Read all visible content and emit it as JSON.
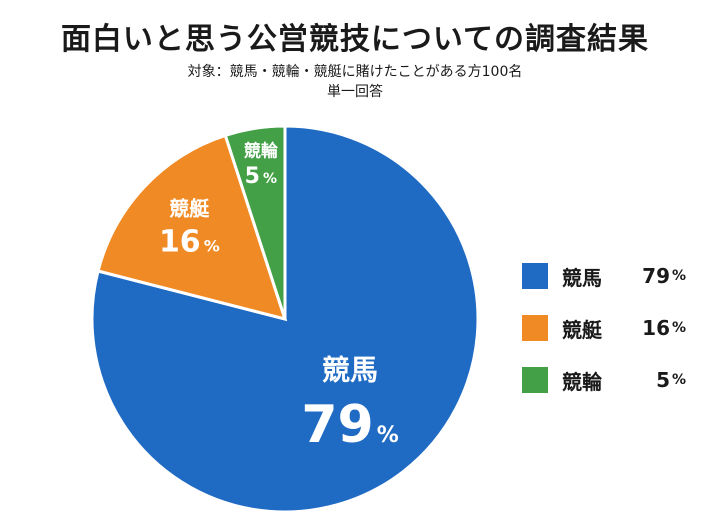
{
  "header": {
    "title": "面白いと思う公営競技についての調査結果",
    "subtitle_line1": "対象：競馬・競輪・競艇に賭けたことがある方100名",
    "subtitle_line2": "単一回答"
  },
  "unit": "%",
  "chart_data": {
    "type": "pie",
    "categories": [
      "競馬",
      "競艇",
      "競輪"
    ],
    "values": [
      79,
      16,
      5
    ],
    "colors": [
      "#1f6bc4",
      "#f08a24",
      "#44a047"
    ],
    "legend_position": "right"
  },
  "legend": {
    "items": [
      {
        "label": "競馬",
        "value": "79",
        "color": "#1f6bc4"
      },
      {
        "label": "競艇",
        "value": "16",
        "color": "#f08a24"
      },
      {
        "label": "競輪",
        "value": "5",
        "color": "#44a047"
      }
    ]
  }
}
